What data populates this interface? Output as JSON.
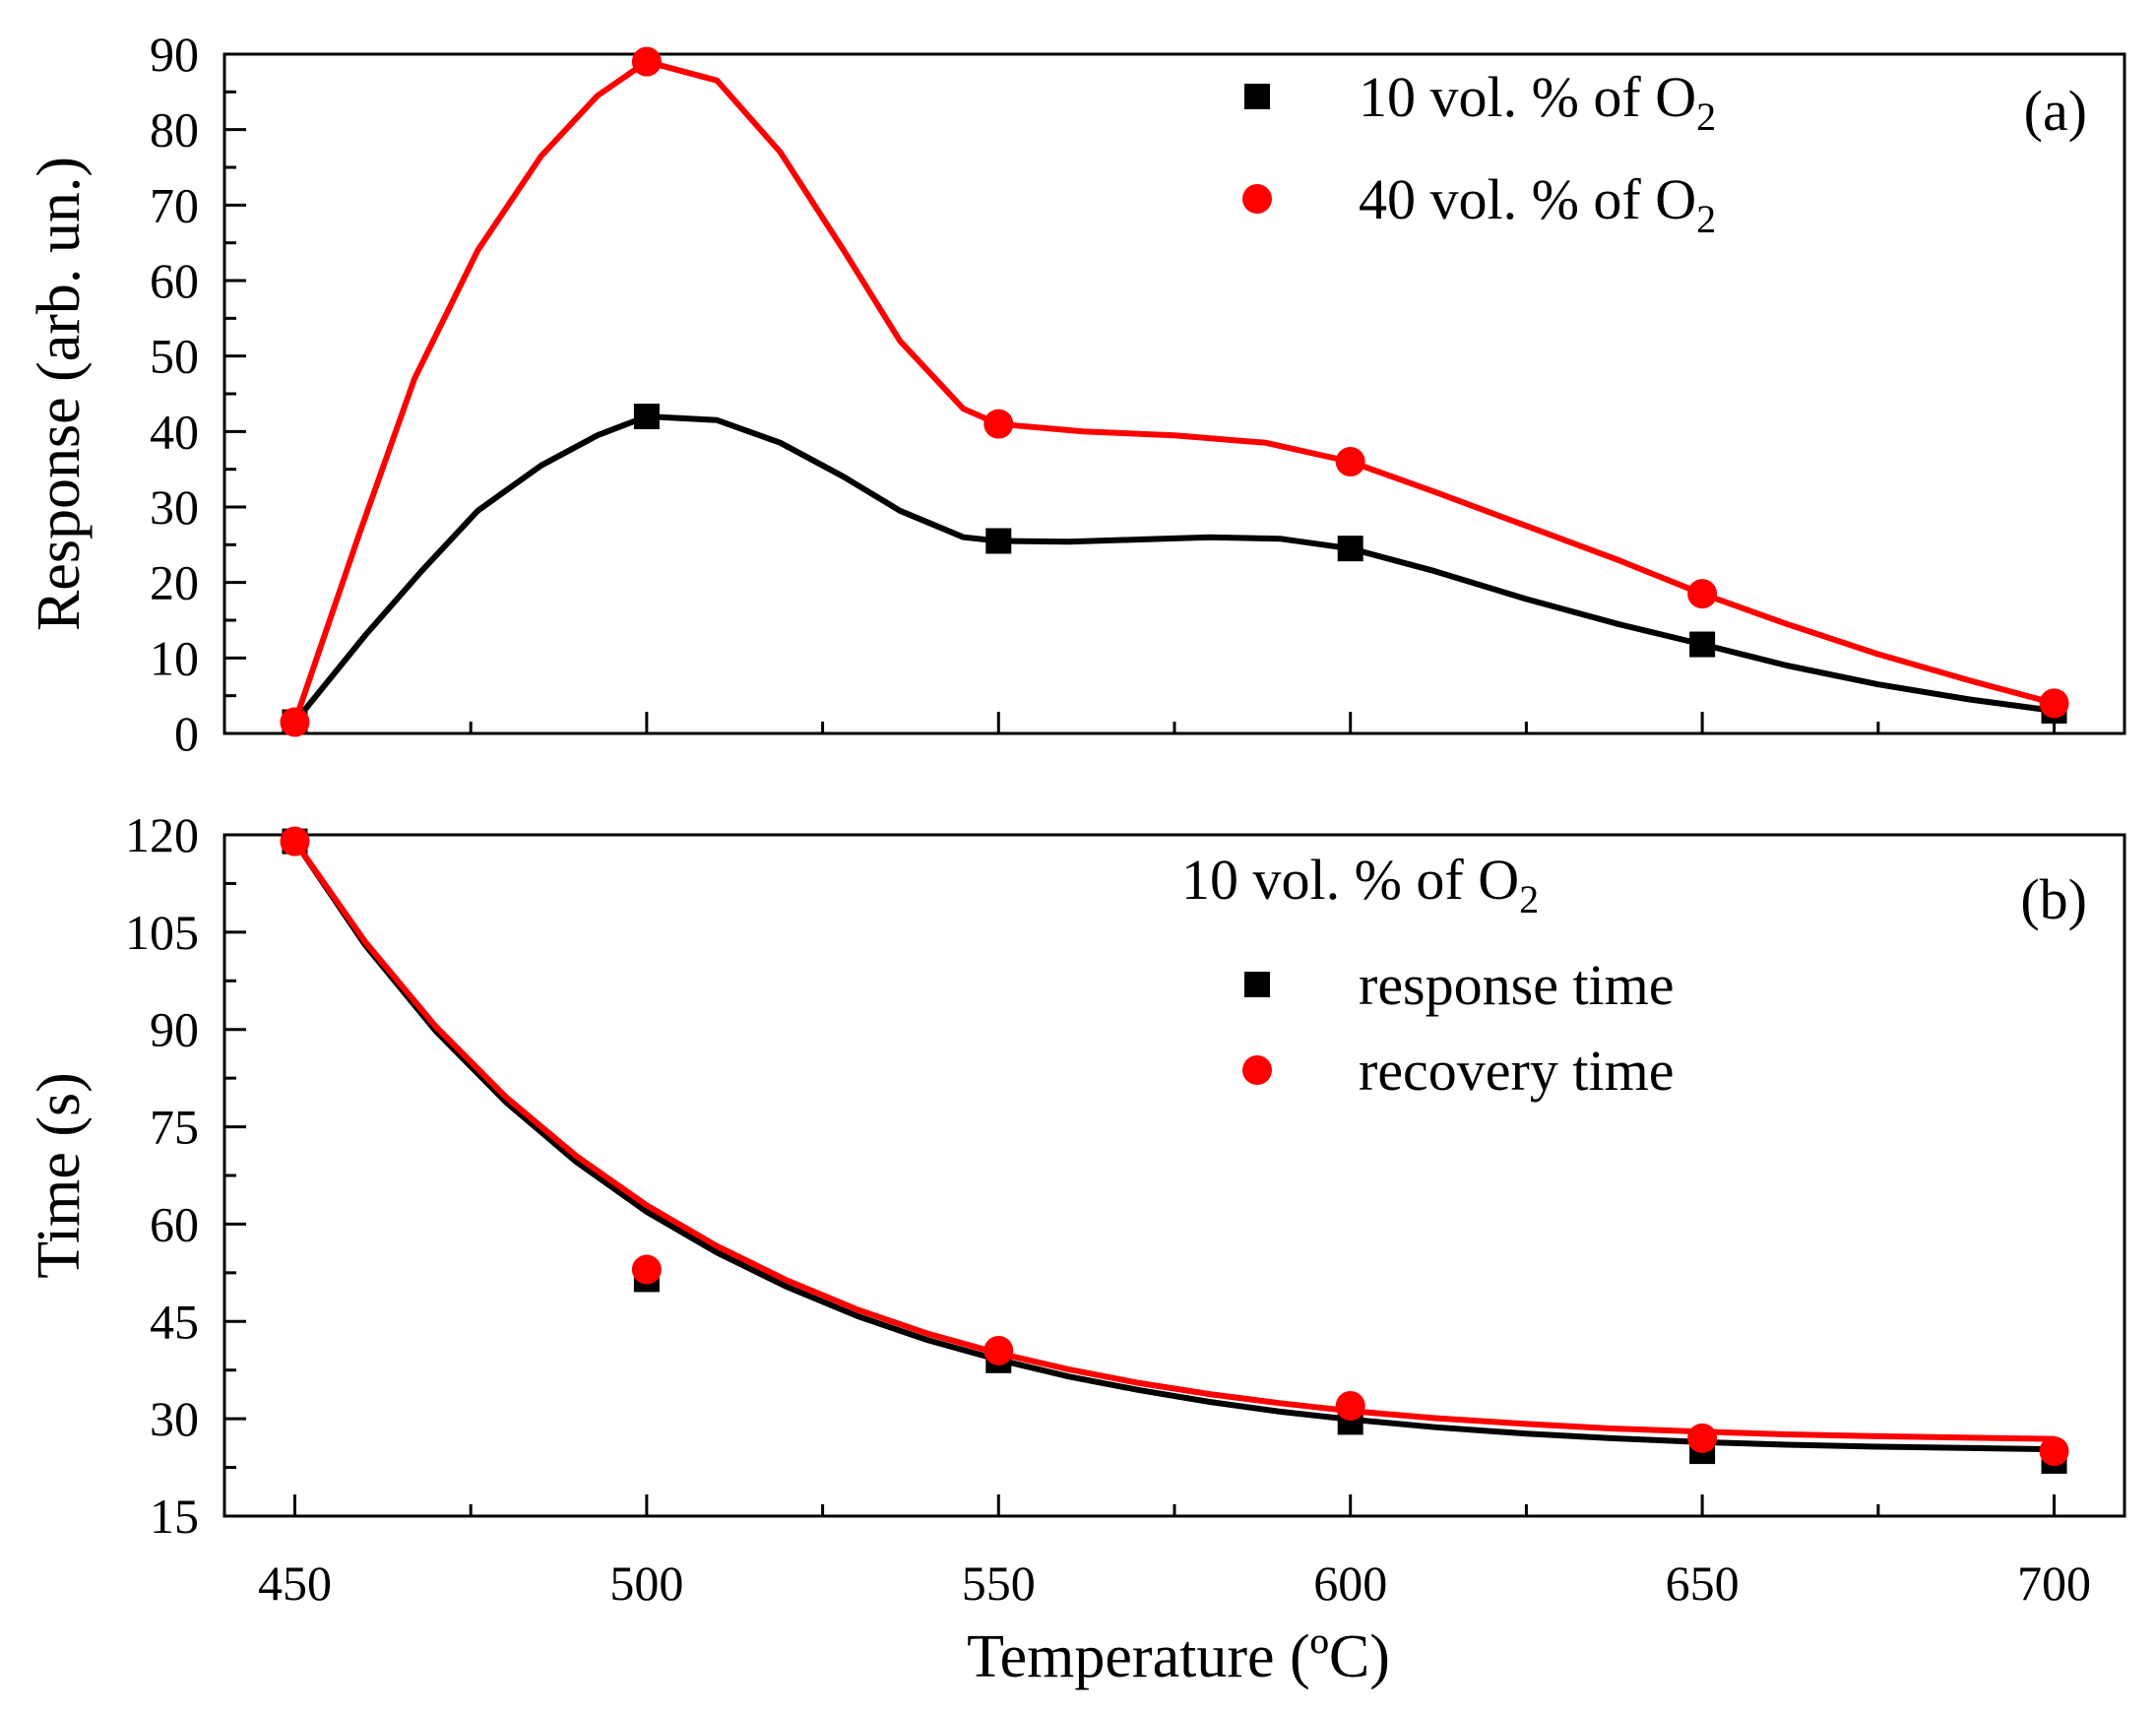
{
  "chart_data": [
    {
      "id": "a",
      "type": "line",
      "panel_label": "(a)",
      "ylabel": "Response (arb. un.)",
      "xlim": [
        440,
        710
      ],
      "ylim": [
        0,
        90
      ],
      "x_ticks": [
        450,
        500,
        550,
        600,
        650,
        700
      ],
      "y_ticks": [
        0,
        10,
        20,
        30,
        40,
        50,
        60,
        70,
        80,
        90
      ],
      "y_tick_labels": [
        "0",
        "10",
        "20",
        "30",
        "40",
        "50",
        "60",
        "70",
        "80",
        "90"
      ],
      "legend_title": null,
      "series": [
        {
          "name": "10 vol. % of O",
          "name_sub": "2",
          "color": "#000000",
          "marker": "square",
          "points": [
            [
              450,
              1.5
            ],
            [
              500,
              42
            ],
            [
              550,
              25.5
            ],
            [
              600,
              24.5
            ],
            [
              650,
              11.8
            ],
            [
              700,
              3
            ]
          ],
          "curve": [
            [
              450,
              1.5
            ],
            [
              460,
              13
            ],
            [
              468,
              21.5
            ],
            [
              476,
              29.5
            ],
            [
              485,
              35.5
            ],
            [
              493,
              39.5
            ],
            [
              500,
              42
            ],
            [
              510,
              41.5
            ],
            [
              519,
              38.5
            ],
            [
              528,
              34
            ],
            [
              536,
              29.5
            ],
            [
              545,
              26
            ],
            [
              550,
              25.5
            ],
            [
              560,
              25.4
            ],
            [
              570,
              25.7
            ],
            [
              580,
              26
            ],
            [
              590,
              25.8
            ],
            [
              600,
              24.5
            ],
            [
              612,
              21.5
            ],
            [
              625,
              17.8
            ],
            [
              638,
              14.5
            ],
            [
              650,
              11.8
            ],
            [
              662,
              9
            ],
            [
              675,
              6.5
            ],
            [
              688,
              4.5
            ],
            [
              700,
              3
            ]
          ]
        },
        {
          "name": "40 vol. % of O",
          "name_sub": "2",
          "color": "#ff0000",
          "marker": "circle",
          "points": [
            [
              450,
              1.5
            ],
            [
              500,
              89
            ],
            [
              550,
              41
            ],
            [
              600,
              36
            ],
            [
              650,
              18.5
            ],
            [
              700,
              4
            ]
          ],
          "curve": [
            [
              450,
              1.5
            ],
            [
              459,
              26
            ],
            [
              467,
              47
            ],
            [
              476,
              64
            ],
            [
              485,
              76.5
            ],
            [
              493,
              84.5
            ],
            [
              500,
              89
            ],
            [
              510,
              86.5
            ],
            [
              519,
              77
            ],
            [
              528,
              64
            ],
            [
              536,
              52
            ],
            [
              545,
              43
            ],
            [
              550,
              41
            ],
            [
              562,
              40
            ],
            [
              575,
              39.5
            ],
            [
              588,
              38.5
            ],
            [
              600,
              36
            ],
            [
              612,
              32
            ],
            [
              625,
              27.5
            ],
            [
              638,
              23
            ],
            [
              650,
              18.5
            ],
            [
              662,
              14.5
            ],
            [
              675,
              10.5
            ],
            [
              688,
              7
            ],
            [
              700,
              4
            ]
          ]
        }
      ]
    },
    {
      "id": "b",
      "type": "line",
      "panel_label": "(b)",
      "ylabel": "Time (s)",
      "xlabel": "Temperature (ºC)",
      "xlim": [
        440,
        710
      ],
      "ylim": [
        15,
        120
      ],
      "x_ticks": [
        450,
        500,
        550,
        600,
        650,
        700
      ],
      "x_tick_labels": [
        "450",
        "500",
        "550",
        "600",
        "650",
        "700"
      ],
      "y_ticks": [
        15,
        30,
        45,
        60,
        75,
        90,
        105,
        120
      ],
      "y_tick_labels": [
        "15",
        "30",
        "45",
        "60",
        "75",
        "90",
        "105",
        "120"
      ],
      "legend_title": "10 vol. % of O",
      "legend_title_sub": "2",
      "series": [
        {
          "name": "response time",
          "color": "#000000",
          "marker": "square",
          "points": [
            [
              450,
              119
            ],
            [
              500,
              51.5
            ],
            [
              550,
              39
            ],
            [
              600,
              29.5
            ],
            [
              650,
              25
            ],
            [
              700,
              23.5
            ]
          ],
          "curve": [
            [
              450,
              119
            ],
            [
              460,
              103
            ],
            [
              470,
              89.8
            ],
            [
              480,
              78.8
            ],
            [
              490,
              69.6
            ],
            [
              500,
              61.9
            ],
            [
              510,
              55.6
            ],
            [
              520,
              50.3
            ],
            [
              530,
              45.8
            ],
            [
              540,
              42.1
            ],
            [
              550,
              39.1
            ],
            [
              560,
              36.5
            ],
            [
              570,
              34.4
            ],
            [
              580,
              32.6
            ],
            [
              590,
              31.1
            ],
            [
              600,
              29.9
            ],
            [
              612,
              28.7
            ],
            [
              625,
              27.7
            ],
            [
              637,
              27
            ],
            [
              650,
              26.4
            ],
            [
              662,
              26
            ],
            [
              675,
              25.7
            ],
            [
              687,
              25.5
            ],
            [
              700,
              25.3
            ]
          ]
        },
        {
          "name": "recovery time",
          "color": "#ff0000",
          "marker": "circle",
          "points": [
            [
              450,
              119
            ],
            [
              500,
              53
            ],
            [
              550,
              40.5
            ],
            [
              600,
              32
            ],
            [
              650,
              27
            ],
            [
              700,
              25
            ]
          ],
          "curve": [
            [
              450,
              119
            ],
            [
              460,
              103.5
            ],
            [
              470,
              90.5
            ],
            [
              480,
              79.6
            ],
            [
              490,
              70.5
            ],
            [
              500,
              62.9
            ],
            [
              510,
              56.6
            ],
            [
              520,
              51.3
            ],
            [
              530,
              46.8
            ],
            [
              540,
              43.1
            ],
            [
              550,
              40.1
            ],
            [
              560,
              37.6
            ],
            [
              570,
              35.5
            ],
            [
              580,
              33.8
            ],
            [
              590,
              32.4
            ],
            [
              600,
              31.2
            ],
            [
              612,
              30.1
            ],
            [
              625,
              29.2
            ],
            [
              637,
              28.5
            ],
            [
              650,
              28
            ],
            [
              662,
              27.6
            ],
            [
              675,
              27.3
            ],
            [
              687,
              27.1
            ],
            [
              700,
              26.9
            ]
          ]
        }
      ]
    }
  ]
}
